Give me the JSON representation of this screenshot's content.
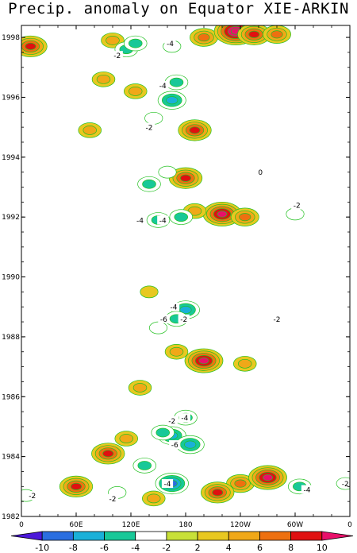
{
  "chart_data": {
    "type": "heatmap",
    "title": "Precip. anomaly on Equator XIE-ARKIN",
    "xlabel": "",
    "ylabel": "",
    "x_ticks": [
      "0",
      "60E",
      "120E",
      "180",
      "120W",
      "60W",
      "0"
    ],
    "x_tick_degrees_east": [
      0,
      60,
      120,
      180,
      240,
      300,
      360
    ],
    "xlim": [
      0,
      360
    ],
    "y_ticks": [
      "1982",
      "1984",
      "1986",
      "1988",
      "1990",
      "1992",
      "1994",
      "1996",
      "1998"
    ],
    "ylim": [
      1982,
      1998.4
    ],
    "colorbar": {
      "labels": [
        "-10",
        "-8",
        "-6",
        "-4",
        "-2",
        "2",
        "4",
        "6",
        "8",
        "10"
      ],
      "levels": [
        -12,
        -10,
        -8,
        -6,
        -4,
        -2,
        2,
        4,
        6,
        8,
        10,
        12
      ],
      "colors": [
        "#4b18d8",
        "#2a6ee0",
        "#1ab0d8",
        "#18c898",
        "#ffffff",
        "#c8e038",
        "#e8c820",
        "#f0a818",
        "#ee7010",
        "#e01010",
        "#e8106a"
      ]
    },
    "contour_line_color": "#22c020",
    "anomalies": [
      {
        "lon": 100,
        "year": 1997.9,
        "value": 4
      },
      {
        "lon": 115,
        "year": 1997.6,
        "value": -4
      },
      {
        "lon": 125,
        "year": 1997.8,
        "value": -4
      },
      {
        "lon": 165,
        "year": 1997.7,
        "value": -2
      },
      {
        "lon": 200,
        "year": 1998.0,
        "value": 6
      },
      {
        "lon": 235,
        "year": 1998.2,
        "value": 12
      },
      {
        "lon": 255,
        "year": 1998.1,
        "value": 8
      },
      {
        "lon": 280,
        "year": 1998.1,
        "value": 6
      },
      {
        "lon": 10,
        "year": 1997.7,
        "value": 8
      },
      {
        "lon": 165,
        "year": 1995.9,
        "value": -6
      },
      {
        "lon": 170,
        "year": 1996.5,
        "value": -4
      },
      {
        "lon": 125,
        "year": 1996.2,
        "value": 4
      },
      {
        "lon": 90,
        "year": 1996.6,
        "value": 4
      },
      {
        "lon": 75,
        "year": 1994.9,
        "value": 4
      },
      {
        "lon": 190,
        "year": 1994.9,
        "value": 8
      },
      {
        "lon": 145,
        "year": 1995.3,
        "value": -2
      },
      {
        "lon": 180,
        "year": 1993.3,
        "value": 8
      },
      {
        "lon": 160,
        "year": 1993.5,
        "value": -2
      },
      {
        "lon": 140,
        "year": 1993.1,
        "value": -4
      },
      {
        "lon": 220,
        "year": 1992.1,
        "value": 10
      },
      {
        "lon": 245,
        "year": 1992.0,
        "value": 6
      },
      {
        "lon": 190,
        "year": 1992.2,
        "value": 4
      },
      {
        "lon": 175,
        "year": 1992.0,
        "value": -4
      },
      {
        "lon": 150,
        "year": 1991.9,
        "value": -4
      },
      {
        "lon": 300,
        "year": 1992.1,
        "value": -2
      },
      {
        "lon": 180,
        "year": 1988.9,
        "value": -6
      },
      {
        "lon": 170,
        "year": 1988.6,
        "value": -4
      },
      {
        "lon": 140,
        "year": 1989.5,
        "value": 2
      },
      {
        "lon": 200,
        "year": 1987.2,
        "value": 10
      },
      {
        "lon": 245,
        "year": 1987.1,
        "value": 4
      },
      {
        "lon": 170,
        "year": 1987.5,
        "value": 4
      },
      {
        "lon": 150,
        "year": 1988.3,
        "value": -2
      },
      {
        "lon": 130,
        "year": 1986.3,
        "value": 4
      },
      {
        "lon": 180,
        "year": 1985.3,
        "value": -4
      },
      {
        "lon": 165,
        "year": 1984.7,
        "value": -6
      },
      {
        "lon": 185,
        "year": 1984.4,
        "value": -6
      },
      {
        "lon": 155,
        "year": 1984.8,
        "value": -4
      },
      {
        "lon": 95,
        "year": 1984.1,
        "value": 8
      },
      {
        "lon": 115,
        "year": 1984.6,
        "value": 4
      },
      {
        "lon": 135,
        "year": 1983.7,
        "value": -4
      },
      {
        "lon": 165,
        "year": 1983.1,
        "value": -8
      },
      {
        "lon": 145,
        "year": 1982.6,
        "value": 4
      },
      {
        "lon": 105,
        "year": 1982.8,
        "value": -2
      },
      {
        "lon": 60,
        "year": 1983.0,
        "value": 8
      },
      {
        "lon": 240,
        "year": 1983.1,
        "value": 6
      },
      {
        "lon": 270,
        "year": 1983.3,
        "value": 10
      },
      {
        "lon": 215,
        "year": 1982.8,
        "value": 8
      },
      {
        "lon": 305,
        "year": 1983.0,
        "value": -4
      },
      {
        "lon": 355,
        "year": 1983.1,
        "value": -2
      },
      {
        "lon": 5,
        "year": 1982.7,
        "value": -2
      }
    ],
    "contour_labels": [
      {
        "text": "-4",
        "lon": 163,
        "year": 1997.8
      },
      {
        "text": "-2",
        "lon": 105,
        "year": 1997.4
      },
      {
        "text": "-4",
        "lon": 155,
        "year": 1996.4
      },
      {
        "text": "-2",
        "lon": 140,
        "year": 1995.0
      },
      {
        "text": "0",
        "lon": 262,
        "year": 1993.5
      },
      {
        "text": "-4",
        "lon": 130,
        "year": 1991.9
      },
      {
        "text": "-4",
        "lon": 155,
        "year": 1991.9
      },
      {
        "text": "-2",
        "lon": 302,
        "year": 1992.4
      },
      {
        "text": "-4",
        "lon": 167,
        "year": 1989.0
      },
      {
        "text": "-6",
        "lon": 156,
        "year": 1988.6
      },
      {
        "text": "-2",
        "lon": 178,
        "year": 1988.6
      },
      {
        "text": "-2",
        "lon": 280,
        "year": 1988.6
      },
      {
        "text": "-4",
        "lon": 179,
        "year": 1985.3
      },
      {
        "text": "-2",
        "lon": 165,
        "year": 1985.2
      },
      {
        "text": "-6",
        "lon": 168,
        "year": 1984.4
      },
      {
        "text": "-2",
        "lon": 12,
        "year": 1982.7
      },
      {
        "text": "-4",
        "lon": 160,
        "year": 1983.1
      },
      {
        "text": "-4",
        "lon": 313,
        "year": 1982.9
      },
      {
        "text": "-2",
        "lon": 100,
        "year": 1982.6
      },
      {
        "text": "-2",
        "lon": 355,
        "year": 1983.1
      }
    ]
  }
}
